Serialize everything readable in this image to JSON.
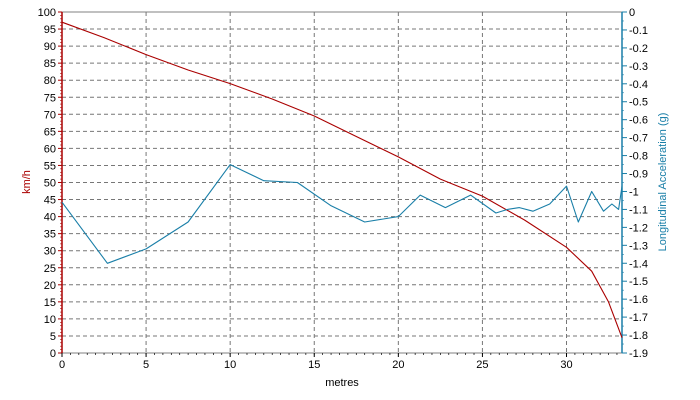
{
  "chart_data": {
    "type": "line",
    "xlabel": "metres",
    "x_ticks": [
      "0",
      "5",
      "10",
      "15",
      "20",
      "25",
      "30"
    ],
    "xlim": [
      0,
      33.3
    ],
    "left_axis": {
      "label": "km/h",
      "ylim": [
        0,
        100
      ],
      "ticks": [
        "0",
        "5",
        "10",
        "15",
        "20",
        "25",
        "30",
        "35",
        "40",
        "45",
        "50",
        "55",
        "60",
        "65",
        "70",
        "75",
        "80",
        "85",
        "90",
        "95",
        "100"
      ]
    },
    "right_axis": {
      "label": "Longitudinal Acceleration (g)",
      "ylim": [
        -1.9,
        0
      ],
      "ticks": [
        "0",
        "-0.1",
        "-0.2",
        "-0.3",
        "-0.4",
        "-0.5",
        "-0.6",
        "-0.7",
        "-0.8",
        "-0.9",
        "-1",
        "-1.1",
        "-1.2",
        "-1.3",
        "-1.4",
        "-1.5",
        "-1.6",
        "-1.7",
        "-1.8",
        "-1.9"
      ]
    },
    "grid": true,
    "series": [
      {
        "axis": "left",
        "color": "#aa0000",
        "x": [
          0,
          2.5,
          5,
          7.5,
          10,
          12.5,
          15,
          17.5,
          20,
          22.5,
          25,
          27.5,
          30,
          31.5,
          32.5,
          33.3
        ],
        "y": [
          97,
          92.5,
          87.5,
          83,
          79,
          74.5,
          69.5,
          63.5,
          57.5,
          51,
          46,
          39,
          31,
          24,
          15,
          4.5
        ]
      },
      {
        "axis": "right",
        "color": "#1a7fa8",
        "x": [
          0,
          2.7,
          5,
          7.5,
          10,
          12,
          14,
          16,
          18,
          20,
          21.3,
          22.8,
          24.3,
          25.8,
          26.5,
          27.2,
          28,
          29,
          30,
          30.7,
          31.5,
          32.2,
          32.7,
          33.1,
          33.3
        ],
        "y": [
          -1.06,
          -1.4,
          -1.32,
          -1.17,
          -0.85,
          -0.94,
          -0.95,
          -1.08,
          -1.17,
          -1.14,
          -1.02,
          -1.09,
          -1.02,
          -1.12,
          -1.1,
          -1.09,
          -1.11,
          -1.07,
          -0.97,
          -1.17,
          -1.0,
          -1.11,
          -1.07,
          -1.1,
          -0.97
        ]
      }
    ]
  }
}
